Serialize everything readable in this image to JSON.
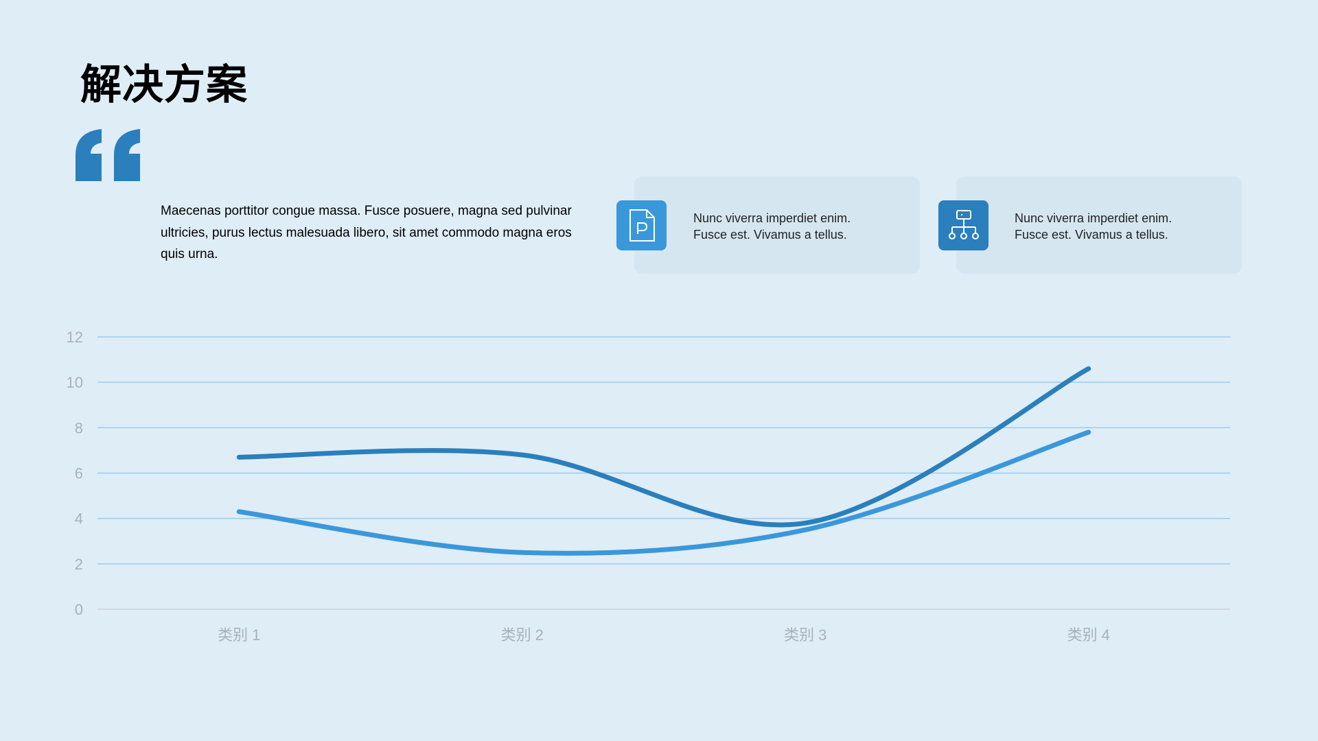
{
  "slide": {
    "title": "解决方案",
    "body": "Maecenas porttitor congue massa. Fusce posuere, magna sed pulvinar ultricies, purus lectus malesuada libero, sit amet commodo magna eros quis urna."
  },
  "cards": [
    {
      "icon": "document-p-icon",
      "text": "Nunc viverra imperdiet enim.\nFusce est. Vivamus a tellus.",
      "color": "#3a98da"
    },
    {
      "icon": "org-chart-icon",
      "text": "Nunc viverra imperdiet enim.\nFusce est. Vivamus a tellus.",
      "color": "#2a7fbc"
    }
  ],
  "colors": {
    "background": "#dfedf7",
    "accent_dark": "#2a7fbc",
    "accent_light": "#3a98da",
    "gridline": "#9ccbec"
  },
  "chart_data": {
    "type": "line",
    "smooth": true,
    "categories": [
      "类别 1",
      "类别 2",
      "类别 3",
      "类别 4"
    ],
    "series": [
      {
        "values": [
          6.7,
          6.8,
          3.8,
          10.6
        ],
        "color": "#2a7fbc"
      },
      {
        "values": [
          4.3,
          2.5,
          3.5,
          7.8
        ],
        "color": "#3a98da"
      }
    ],
    "y_ticks": [
      0,
      2,
      4,
      6,
      8,
      10,
      12
    ],
    "ylim": [
      0,
      12
    ],
    "grid": true,
    "legend": "none"
  }
}
